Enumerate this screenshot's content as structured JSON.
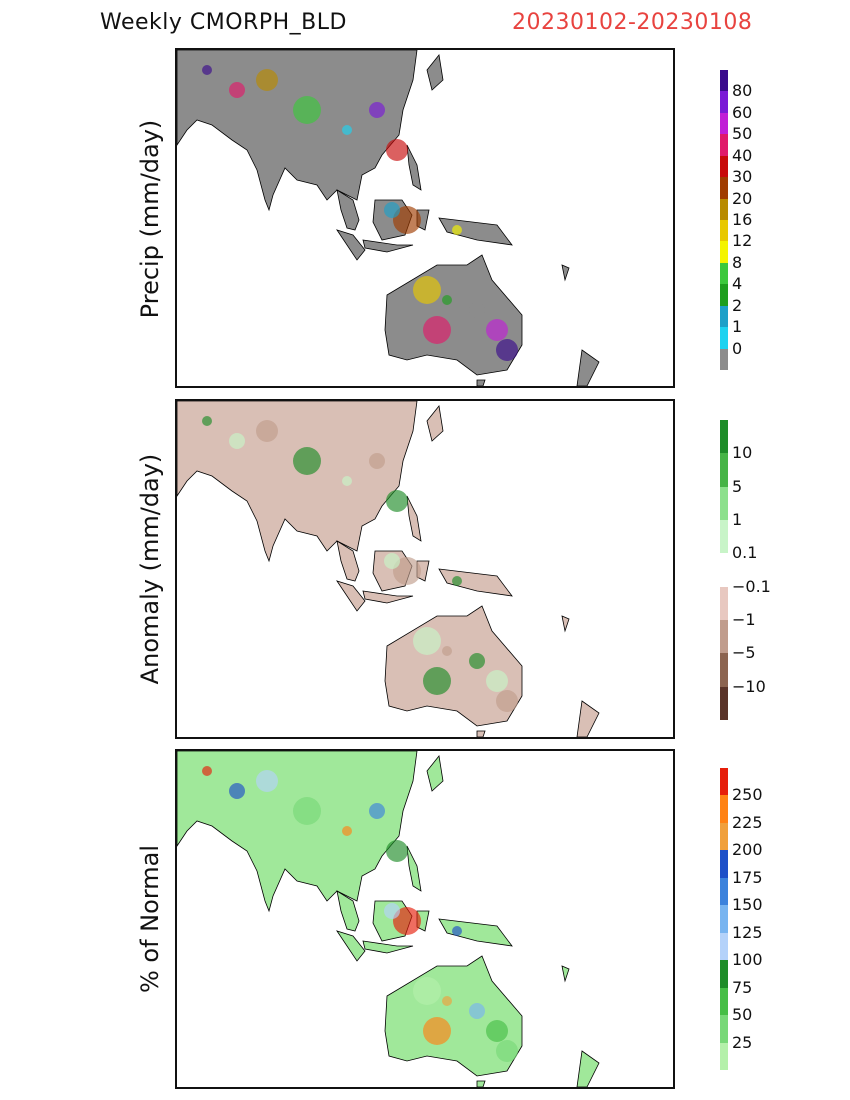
{
  "header": {
    "title": "Weekly  CMORPH_BLD",
    "date_range": "20230102-20230108",
    "date_color": "#e8433f"
  },
  "panels": [
    {
      "id": "precip",
      "ylabel": "Precip (mm/day)",
      "land_color": "#8c8c8c",
      "legend": {
        "labels": [
          "80",
          "60",
          "50",
          "40",
          "30",
          "20",
          "16",
          "12",
          "8",
          "4",
          "2",
          "1",
          "0"
        ],
        "colors": [
          "#3a0a8c",
          "#7a1ad6",
          "#c01fd6",
          "#e01a6a",
          "#c80a0a",
          "#a03c00",
          "#b88a00",
          "#e8c800",
          "#f4f400",
          "#3cc83c",
          "#1e9e1e",
          "#1ea0c8",
          "#1ed2f0",
          "#8c8c8c"
        ]
      }
    },
    {
      "id": "anomaly",
      "ylabel": "Anomaly (mm/day)",
      "land_color": "#d9bfb5",
      "legend": {
        "labels": [
          "10",
          "5",
          "1",
          "0.1",
          "−0.1",
          "−1",
          "−5",
          "−10"
        ],
        "colors": [
          "#1e8c28",
          "#46b446",
          "#8ce08c",
          "#c8f4c8",
          "#ffffff",
          "#e8c8c0",
          "#c09c8c",
          "#8c6450",
          "#5a3428"
        ]
      }
    },
    {
      "id": "percent",
      "ylabel": "% of Normal",
      "land_color": "#a0e89a",
      "legend": {
        "labels": [
          "250",
          "225",
          "200",
          "175",
          "150",
          "125",
          "100",
          "75",
          "50",
          "25"
        ],
        "colors": [
          "#e61e0a",
          "#ff8214",
          "#f0a03c",
          "#1e50c8",
          "#3c82dc",
          "#78b4f0",
          "#b4d2fa",
          "#1e8c28",
          "#46be46",
          "#78d878",
          "#b4f0aa"
        ]
      }
    }
  ]
}
